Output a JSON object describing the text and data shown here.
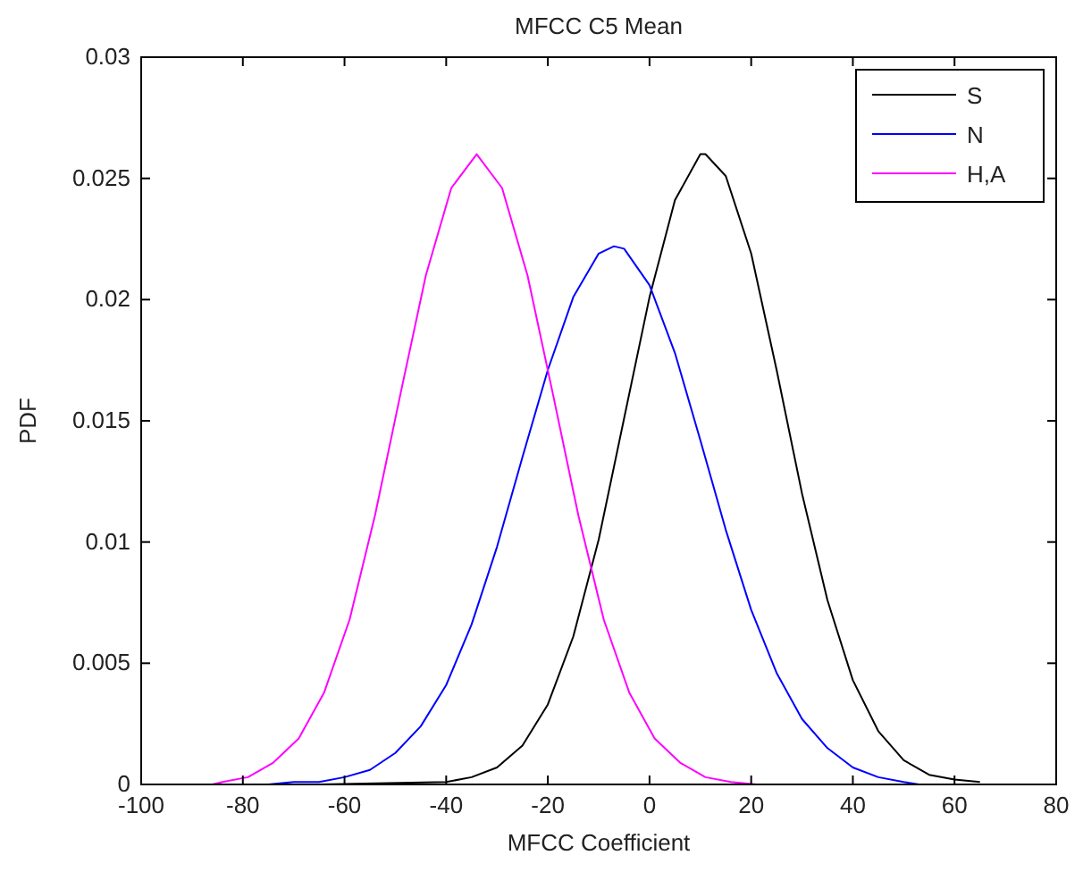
{
  "chart_data": {
    "type": "line",
    "title": "MFCC C5 Mean",
    "xlabel": "MFCC Coefficient",
    "ylabel": "PDF",
    "xlim": [
      -100,
      80
    ],
    "xticks": [
      -100,
      -80,
      -60,
      -40,
      -20,
      0,
      20,
      40,
      60,
      80
    ],
    "ylim": [
      0,
      0.03
    ],
    "yticks": [
      0,
      0.005,
      0.01,
      0.015,
      0.02,
      0.025,
      0.03
    ],
    "grid": false,
    "legend": "top right",
    "marker": "none",
    "line_style": "solid",
    "series": [
      {
        "name": "S",
        "color": "#000000",
        "x": [
          -65,
          -40,
          -35,
          -30,
          -25,
          -20,
          -15,
          -10,
          -5,
          0,
          5,
          10,
          11,
          15,
          20,
          25,
          30,
          35,
          40,
          45,
          50,
          55,
          60,
          65
        ],
        "values": [
          0,
          0.0001,
          0.0003,
          0.0007,
          0.0016,
          0.0033,
          0.0061,
          0.0101,
          0.0151,
          0.0201,
          0.0241,
          0.026,
          0.026,
          0.0251,
          0.0219,
          0.0171,
          0.012,
          0.0076,
          0.0043,
          0.0022,
          0.001,
          0.0004,
          0.0002,
          0.0001
        ]
      },
      {
        "name": "N",
        "color": "#0000ff",
        "x": [
          -75,
          -70,
          -65,
          -60,
          -55,
          -50,
          -45,
          -40,
          -35,
          -30,
          -25,
          -20,
          -15,
          -10,
          -7,
          -5,
          0,
          5,
          10,
          15,
          20,
          25,
          30,
          35,
          40,
          45,
          50,
          53
        ],
        "values": [
          0,
          0.0001,
          0.0001,
          0.0003,
          0.0006,
          0.0013,
          0.0024,
          0.0041,
          0.0066,
          0.0098,
          0.0135,
          0.0171,
          0.0201,
          0.0219,
          0.0222,
          0.0221,
          0.0206,
          0.0178,
          0.0142,
          0.0105,
          0.0072,
          0.0046,
          0.0027,
          0.0015,
          0.0007,
          0.0003,
          0.0001,
          0
        ]
      },
      {
        "name": "H,A",
        "color": "#ff00ff",
        "x": [
          -86,
          -84,
          -79,
          -74,
          -69,
          -64,
          -59,
          -54,
          -49,
          -44,
          -39,
          -34,
          -29,
          -24,
          -19,
          -14,
          -9,
          -4,
          1,
          6,
          11,
          16,
          21
        ],
        "values": [
          0,
          0.0001,
          0.0003,
          0.0009,
          0.0019,
          0.0038,
          0.0068,
          0.0111,
          0.0161,
          0.021,
          0.0246,
          0.026,
          0.0246,
          0.021,
          0.0161,
          0.0111,
          0.0068,
          0.0038,
          0.0019,
          0.0009,
          0.0003,
          0.0001,
          0
        ]
      }
    ]
  }
}
